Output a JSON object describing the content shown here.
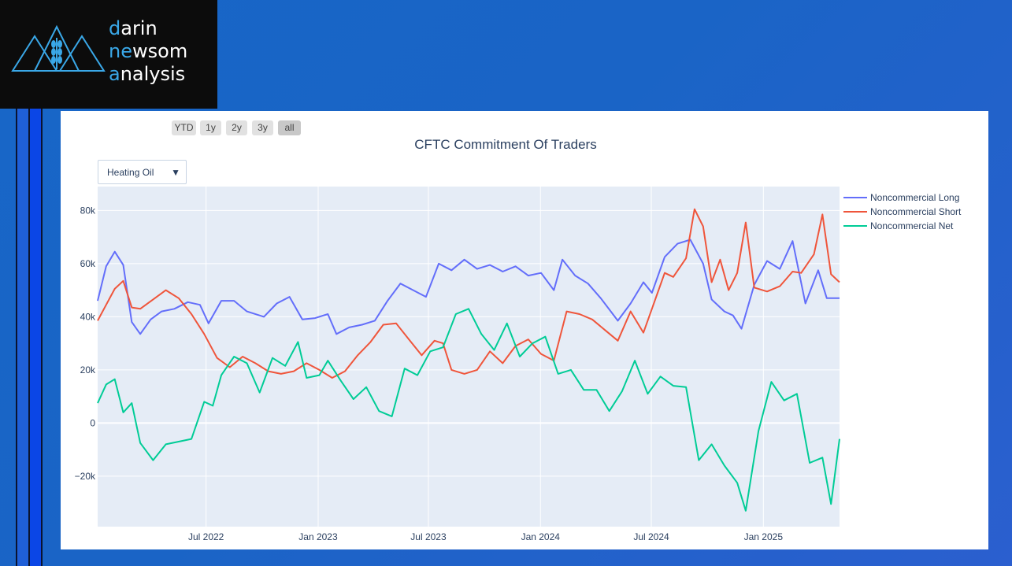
{
  "logo": {
    "lines": [
      {
        "first": "d",
        "rest": "arin"
      },
      {
        "first": "ne",
        "mid": "w",
        "rest": "som"
      },
      {
        "first": "a",
        "rest": "nalysis"
      }
    ],
    "accent_color": "#3aa8e8"
  },
  "range_selector": {
    "buttons": [
      "YTD",
      "1y",
      "2y",
      "3y",
      "all"
    ],
    "active": "all"
  },
  "dropdown": {
    "selected": "Heating Oil",
    "icon": "triangle-down-icon"
  },
  "chart_data": {
    "type": "line",
    "title": "CFTC Commitment Of Traders",
    "xlabel": "",
    "ylabel": "",
    "x_start": "2022-01-04",
    "x_end": "2025-05-06",
    "x_ticks": [
      "Jul 2022",
      "Jan 2023",
      "Jul 2023",
      "Jan 2024",
      "Jul 2024",
      "Jan 2025"
    ],
    "x_tick_dates": [
      "2022-07-01",
      "2023-01-01",
      "2023-07-01",
      "2024-01-01",
      "2024-07-01",
      "2025-01-01"
    ],
    "y_ticks": [
      "80k",
      "60k",
      "40k",
      "20k",
      "0",
      "−20k"
    ],
    "y_tick_values": [
      80000,
      60000,
      40000,
      20000,
      0,
      -20000
    ],
    "ylim": [
      -39000,
      89000
    ],
    "grid": true,
    "legend_position": "top-right",
    "series": [
      {
        "name": "Noncommercial Long",
        "color": "#636efa",
        "points": [
          [
            "2022-01-04",
            46000
          ],
          [
            "2022-01-18",
            59000
          ],
          [
            "2022-02-01",
            64500
          ],
          [
            "2022-02-15",
            59500
          ],
          [
            "2022-03-01",
            38000
          ],
          [
            "2022-03-15",
            33500
          ],
          [
            "2022-04-01",
            39000
          ],
          [
            "2022-04-19",
            42000
          ],
          [
            "2022-05-10",
            43000
          ],
          [
            "2022-06-01",
            45500
          ],
          [
            "2022-06-21",
            44500
          ],
          [
            "2022-07-05",
            37500
          ],
          [
            "2022-07-26",
            46000
          ],
          [
            "2022-08-16",
            46000
          ],
          [
            "2022-09-06",
            42000
          ],
          [
            "2022-10-04",
            40000
          ],
          [
            "2022-10-25",
            45000
          ],
          [
            "2022-11-15",
            47500
          ],
          [
            "2022-12-06",
            39000
          ],
          [
            "2022-12-27",
            39500
          ],
          [
            "2023-01-17",
            41000
          ],
          [
            "2023-01-31",
            33500
          ],
          [
            "2023-02-21",
            36000
          ],
          [
            "2023-03-14",
            37000
          ],
          [
            "2023-04-04",
            38500
          ],
          [
            "2023-04-25",
            46000
          ],
          [
            "2023-05-16",
            52500
          ],
          [
            "2023-06-06",
            50000
          ],
          [
            "2023-06-27",
            47500
          ],
          [
            "2023-07-18",
            60000
          ],
          [
            "2023-08-08",
            57500
          ],
          [
            "2023-08-29",
            61500
          ],
          [
            "2023-09-19",
            58000
          ],
          [
            "2023-10-10",
            59500
          ],
          [
            "2023-10-31",
            57000
          ],
          [
            "2023-11-21",
            59000
          ],
          [
            "2023-12-12",
            55500
          ],
          [
            "2024-01-02",
            56500
          ],
          [
            "2024-01-23",
            50000
          ],
          [
            "2024-02-06",
            61500
          ],
          [
            "2024-02-27",
            55500
          ],
          [
            "2024-03-19",
            52500
          ],
          [
            "2024-04-09",
            47000
          ],
          [
            "2024-05-07",
            38500
          ],
          [
            "2024-05-28",
            45000
          ],
          [
            "2024-06-18",
            53000
          ],
          [
            "2024-07-02",
            49000
          ],
          [
            "2024-07-23",
            62500
          ],
          [
            "2024-08-13",
            67500
          ],
          [
            "2024-09-03",
            69000
          ],
          [
            "2024-09-24",
            60000
          ],
          [
            "2024-10-08",
            46500
          ],
          [
            "2024-10-29",
            42000
          ],
          [
            "2024-11-12",
            40500
          ],
          [
            "2024-11-26",
            35500
          ],
          [
            "2024-12-17",
            52000
          ],
          [
            "2025-01-07",
            61000
          ],
          [
            "2025-01-28",
            58000
          ],
          [
            "2025-02-18",
            68500
          ],
          [
            "2025-03-11",
            45000
          ],
          [
            "2025-04-01",
            57500
          ],
          [
            "2025-04-15",
            47000
          ],
          [
            "2025-05-06",
            47000
          ]
        ]
      },
      {
        "name": "Noncommercial Short",
        "color": "#ef553b",
        "points": [
          [
            "2022-01-04",
            38500
          ],
          [
            "2022-01-18",
            44500
          ],
          [
            "2022-02-01",
            50500
          ],
          [
            "2022-02-15",
            53500
          ],
          [
            "2022-03-01",
            43500
          ],
          [
            "2022-03-15",
            43000
          ],
          [
            "2022-04-05",
            46500
          ],
          [
            "2022-04-26",
            50000
          ],
          [
            "2022-05-17",
            47000
          ],
          [
            "2022-06-07",
            41000
          ],
          [
            "2022-06-28",
            33500
          ],
          [
            "2022-07-19",
            24500
          ],
          [
            "2022-08-09",
            21000
          ],
          [
            "2022-08-30",
            25000
          ],
          [
            "2022-09-20",
            22500
          ],
          [
            "2022-10-11",
            19500
          ],
          [
            "2022-11-01",
            18500
          ],
          [
            "2022-11-22",
            19500
          ],
          [
            "2022-12-13",
            22500
          ],
          [
            "2023-01-03",
            20000
          ],
          [
            "2023-01-24",
            17000
          ],
          [
            "2023-02-14",
            19500
          ],
          [
            "2023-03-07",
            25500
          ],
          [
            "2023-03-28",
            30500
          ],
          [
            "2023-04-18",
            37000
          ],
          [
            "2023-05-09",
            37500
          ],
          [
            "2023-05-30",
            31500
          ],
          [
            "2023-06-20",
            25500
          ],
          [
            "2023-07-11",
            31000
          ],
          [
            "2023-07-25",
            30000
          ],
          [
            "2023-08-08",
            20000
          ],
          [
            "2023-08-29",
            18500
          ],
          [
            "2023-09-19",
            20000
          ],
          [
            "2023-10-10",
            27000
          ],
          [
            "2023-10-31",
            22500
          ],
          [
            "2023-11-21",
            29000
          ],
          [
            "2023-12-12",
            31500
          ],
          [
            "2024-01-02",
            26000
          ],
          [
            "2024-01-23",
            23500
          ],
          [
            "2024-02-13",
            42000
          ],
          [
            "2024-03-05",
            41000
          ],
          [
            "2024-03-26",
            39000
          ],
          [
            "2024-04-16",
            35000
          ],
          [
            "2024-05-07",
            31000
          ],
          [
            "2024-05-28",
            42000
          ],
          [
            "2024-06-18",
            34000
          ],
          [
            "2024-07-02",
            43000
          ],
          [
            "2024-07-23",
            56500
          ],
          [
            "2024-08-06",
            55000
          ],
          [
            "2024-08-27",
            62000
          ],
          [
            "2024-09-10",
            80500
          ],
          [
            "2024-09-24",
            74000
          ],
          [
            "2024-10-08",
            53000
          ],
          [
            "2024-10-22",
            61500
          ],
          [
            "2024-11-05",
            50000
          ],
          [
            "2024-11-19",
            56500
          ],
          [
            "2024-12-03",
            75500
          ],
          [
            "2024-12-17",
            51000
          ],
          [
            "2025-01-07",
            49500
          ],
          [
            "2025-01-28",
            51500
          ],
          [
            "2025-02-18",
            57000
          ],
          [
            "2025-03-04",
            56500
          ],
          [
            "2025-03-25",
            63500
          ],
          [
            "2025-04-08",
            78500
          ],
          [
            "2025-04-22",
            56000
          ],
          [
            "2025-05-06",
            53000
          ]
        ]
      },
      {
        "name": "Noncommercial Net",
        "color": "#00cc96",
        "points": [
          [
            "2022-01-04",
            7500
          ],
          [
            "2022-01-18",
            14500
          ],
          [
            "2022-02-01",
            16500
          ],
          [
            "2022-02-15",
            4000
          ],
          [
            "2022-03-01",
            7500
          ],
          [
            "2022-03-15",
            -7500
          ],
          [
            "2022-04-05",
            -14000
          ],
          [
            "2022-04-26",
            -8000
          ],
          [
            "2022-05-17",
            -7000
          ],
          [
            "2022-06-07",
            -6000
          ],
          [
            "2022-06-28",
            8000
          ],
          [
            "2022-07-12",
            6500
          ],
          [
            "2022-07-26",
            18000
          ],
          [
            "2022-08-16",
            25000
          ],
          [
            "2022-09-06",
            22500
          ],
          [
            "2022-09-27",
            11500
          ],
          [
            "2022-10-18",
            24500
          ],
          [
            "2022-11-08",
            21500
          ],
          [
            "2022-11-29",
            30500
          ],
          [
            "2022-12-13",
            17000
          ],
          [
            "2023-01-03",
            18000
          ],
          [
            "2023-01-17",
            23500
          ],
          [
            "2023-02-07",
            16000
          ],
          [
            "2023-02-28",
            9000
          ],
          [
            "2023-03-21",
            13500
          ],
          [
            "2023-04-11",
            4500
          ],
          [
            "2023-05-02",
            2500
          ],
          [
            "2023-05-23",
            20500
          ],
          [
            "2023-06-13",
            18000
          ],
          [
            "2023-07-04",
            27000
          ],
          [
            "2023-07-25",
            28500
          ],
          [
            "2023-08-15",
            41000
          ],
          [
            "2023-09-05",
            43000
          ],
          [
            "2023-09-26",
            33500
          ],
          [
            "2023-10-17",
            27500
          ],
          [
            "2023-11-07",
            37500
          ],
          [
            "2023-11-28",
            25000
          ],
          [
            "2023-12-19",
            30000
          ],
          [
            "2024-01-09",
            32500
          ],
          [
            "2024-01-30",
            18500
          ],
          [
            "2024-02-20",
            20000
          ],
          [
            "2024-03-12",
            12500
          ],
          [
            "2024-04-02",
            12500
          ],
          [
            "2024-04-23",
            4500
          ],
          [
            "2024-05-14",
            12000
          ],
          [
            "2024-06-04",
            23500
          ],
          [
            "2024-06-25",
            11000
          ],
          [
            "2024-07-16",
            17500
          ],
          [
            "2024-08-06",
            14000
          ],
          [
            "2024-08-27",
            13500
          ],
          [
            "2024-09-17",
            -14000
          ],
          [
            "2024-10-08",
            -8000
          ],
          [
            "2024-10-29",
            -16000
          ],
          [
            "2024-11-19",
            -22500
          ],
          [
            "2024-12-03",
            -33000
          ],
          [
            "2024-12-24",
            -3000
          ],
          [
            "2025-01-14",
            15500
          ],
          [
            "2025-02-04",
            8500
          ],
          [
            "2025-02-25",
            11000
          ],
          [
            "2025-03-18",
            -15000
          ],
          [
            "2025-04-08",
            -13000
          ],
          [
            "2025-04-22",
            -30500
          ],
          [
            "2025-05-06",
            -6000
          ]
        ]
      }
    ]
  }
}
